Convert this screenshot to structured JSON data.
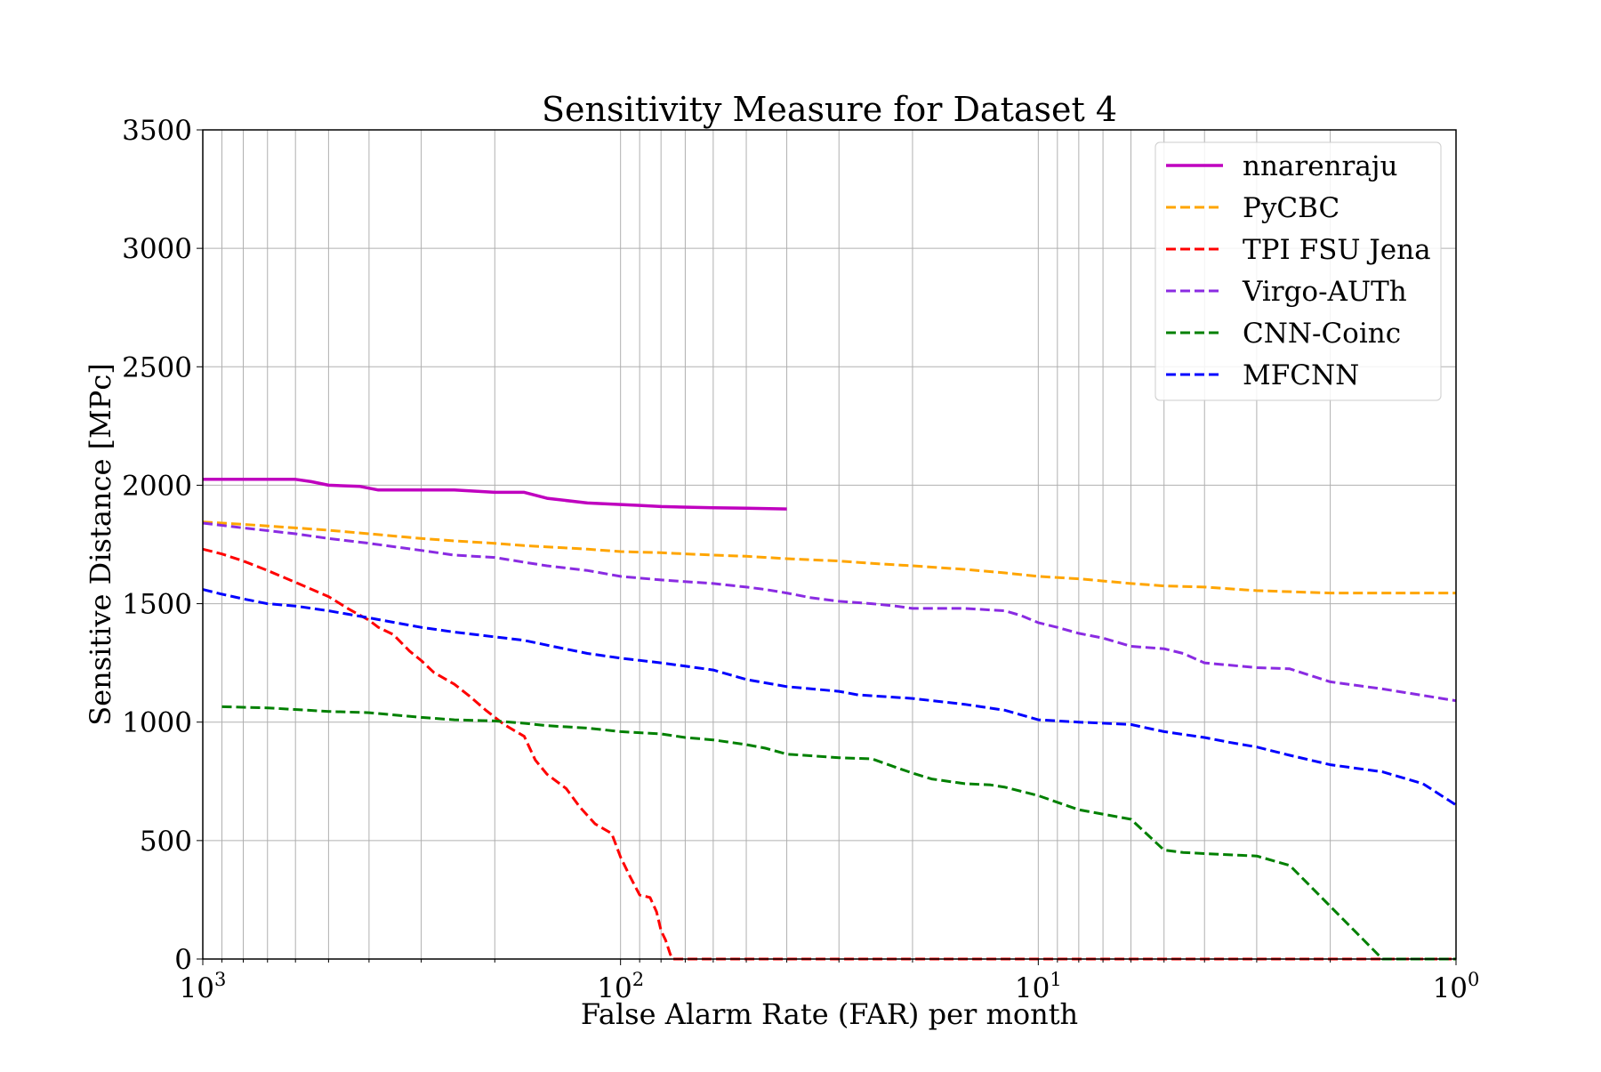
{
  "chart_data": {
    "type": "line",
    "title": "Sensitivity Measure for Dataset 4",
    "xlabel": "False Alarm Rate (FAR) per month",
    "ylabel": "Sensitive Distance [MPc]",
    "x_scale": "log",
    "x_reversed": true,
    "xlim": [
      1000,
      1
    ],
    "ylim": [
      0,
      3500
    ],
    "grid": true,
    "legend_position": "top-right",
    "x_ticks": [
      {
        "base": "10",
        "exp": "3",
        "value": 1000
      },
      {
        "base": "10",
        "exp": "2",
        "value": 100
      },
      {
        "base": "10",
        "exp": "1",
        "value": 10
      },
      {
        "base": "10",
        "exp": "0",
        "value": 1
      }
    ],
    "y_ticks": [
      {
        "label": "0",
        "value": 0
      },
      {
        "label": "500",
        "value": 500
      },
      {
        "label": "1000",
        "value": 1000
      },
      {
        "label": "1500",
        "value": 1500
      },
      {
        "label": "2000",
        "value": 2000
      },
      {
        "label": "2500",
        "value": 2500
      },
      {
        "label": "3000",
        "value": 3000
      },
      {
        "label": "3500",
        "value": 3500
      }
    ],
    "series": [
      {
        "name": "nnarenraju",
        "color": "#bf00bf",
        "dash": "solid",
        "points": [
          [
            1000,
            2025
          ],
          [
            800,
            2025
          ],
          [
            600,
            2025
          ],
          [
            550,
            2015
          ],
          [
            500,
            2000
          ],
          [
            420,
            1995
          ],
          [
            380,
            1980
          ],
          [
            300,
            1980
          ],
          [
            250,
            1980
          ],
          [
            200,
            1970
          ],
          [
            170,
            1970
          ],
          [
            150,
            1945
          ],
          [
            120,
            1925
          ],
          [
            90,
            1915
          ],
          [
            80,
            1910
          ],
          [
            60,
            1905
          ],
          [
            50,
            1903
          ],
          [
            40,
            1900
          ]
        ]
      },
      {
        "name": "PyCBC",
        "color": "#ffa500",
        "dash": "dashed",
        "points": [
          [
            1000,
            1845
          ],
          [
            800,
            1835
          ],
          [
            600,
            1820
          ],
          [
            500,
            1810
          ],
          [
            400,
            1795
          ],
          [
            300,
            1775
          ],
          [
            250,
            1765
          ],
          [
            200,
            1755
          ],
          [
            170,
            1745
          ],
          [
            150,
            1740
          ],
          [
            120,
            1730
          ],
          [
            100,
            1720
          ],
          [
            80,
            1715
          ],
          [
            60,
            1705
          ],
          [
            50,
            1700
          ],
          [
            40,
            1690
          ],
          [
            30,
            1680
          ],
          [
            25,
            1670
          ],
          [
            20,
            1660
          ],
          [
            15,
            1645
          ],
          [
            12,
            1630
          ],
          [
            10,
            1615
          ],
          [
            8,
            1605
          ],
          [
            6,
            1585
          ],
          [
            5,
            1575
          ],
          [
            4,
            1570
          ],
          [
            3,
            1555
          ],
          [
            2,
            1545
          ],
          [
            1.5,
            1545
          ],
          [
            1,
            1545
          ]
        ]
      },
      {
        "name": "TPI FSU Jena",
        "color": "#ff0000",
        "dash": "dashed",
        "points": [
          [
            1000,
            1730
          ],
          [
            900,
            1710
          ],
          [
            800,
            1680
          ],
          [
            700,
            1640
          ],
          [
            600,
            1590
          ],
          [
            500,
            1530
          ],
          [
            450,
            1480
          ],
          [
            400,
            1430
          ],
          [
            380,
            1400
          ],
          [
            350,
            1370
          ],
          [
            320,
            1300
          ],
          [
            300,
            1260
          ],
          [
            280,
            1210
          ],
          [
            250,
            1160
          ],
          [
            230,
            1110
          ],
          [
            210,
            1050
          ],
          [
            190,
            990
          ],
          [
            170,
            940
          ],
          [
            160,
            840
          ],
          [
            150,
            780
          ],
          [
            135,
            720
          ],
          [
            125,
            640
          ],
          [
            115,
            570
          ],
          [
            105,
            530
          ],
          [
            100,
            430
          ],
          [
            95,
            350
          ],
          [
            90,
            270
          ],
          [
            85,
            260
          ],
          [
            82,
            200
          ],
          [
            80,
            120
          ],
          [
            78,
            80
          ],
          [
            76,
            20
          ],
          [
            75,
            0
          ],
          [
            1,
            0
          ]
        ]
      },
      {
        "name": "Virgo-AUTh",
        "color": "#8a2be2",
        "dash": "dashed",
        "points": [
          [
            1000,
            1840
          ],
          [
            800,
            1820
          ],
          [
            600,
            1795
          ],
          [
            500,
            1775
          ],
          [
            400,
            1755
          ],
          [
            300,
            1725
          ],
          [
            250,
            1705
          ],
          [
            200,
            1695
          ],
          [
            170,
            1675
          ],
          [
            150,
            1660
          ],
          [
            120,
            1640
          ],
          [
            100,
            1615
          ],
          [
            80,
            1600
          ],
          [
            60,
            1585
          ],
          [
            50,
            1570
          ],
          [
            45,
            1560
          ],
          [
            40,
            1545
          ],
          [
            35,
            1525
          ],
          [
            30,
            1510
          ],
          [
            25,
            1500
          ],
          [
            22,
            1490
          ],
          [
            20,
            1480
          ],
          [
            15,
            1480
          ],
          [
            12,
            1470
          ],
          [
            11,
            1450
          ],
          [
            10,
            1420
          ],
          [
            9,
            1400
          ],
          [
            8,
            1375
          ],
          [
            7,
            1355
          ],
          [
            6,
            1320
          ],
          [
            5,
            1310
          ],
          [
            4.5,
            1290
          ],
          [
            4,
            1250
          ],
          [
            3,
            1230
          ],
          [
            2.5,
            1225
          ],
          [
            2,
            1170
          ],
          [
            1.5,
            1140
          ],
          [
            1,
            1090
          ]
        ]
      },
      {
        "name": "CNN-Coinc",
        "color": "#008000",
        "dash": "dashed",
        "points": [
          [
            900,
            1065
          ],
          [
            700,
            1060
          ],
          [
            500,
            1045
          ],
          [
            400,
            1040
          ],
          [
            300,
            1020
          ],
          [
            250,
            1010
          ],
          [
            200,
            1005
          ],
          [
            170,
            995
          ],
          [
            150,
            985
          ],
          [
            120,
            975
          ],
          [
            100,
            960
          ],
          [
            80,
            950
          ],
          [
            70,
            935
          ],
          [
            60,
            925
          ],
          [
            50,
            905
          ],
          [
            45,
            890
          ],
          [
            40,
            865
          ],
          [
            30,
            850
          ],
          [
            25,
            845
          ],
          [
            22,
            810
          ],
          [
            20,
            785
          ],
          [
            18,
            760
          ],
          [
            15,
            740
          ],
          [
            13,
            735
          ],
          [
            12,
            725
          ],
          [
            10,
            690
          ],
          [
            8,
            630
          ],
          [
            6,
            590
          ],
          [
            5,
            460
          ],
          [
            4.5,
            450
          ],
          [
            4,
            445
          ],
          [
            3,
            435
          ],
          [
            2.5,
            395
          ],
          [
            1.5,
            0
          ],
          [
            1,
            0
          ]
        ]
      },
      {
        "name": "MFCNN",
        "color": "#0000ff",
        "dash": "dashed",
        "points": [
          [
            1000,
            1560
          ],
          [
            900,
            1540
          ],
          [
            800,
            1520
          ],
          [
            700,
            1500
          ],
          [
            600,
            1490
          ],
          [
            500,
            1470
          ],
          [
            400,
            1440
          ],
          [
            300,
            1400
          ],
          [
            250,
            1380
          ],
          [
            200,
            1360
          ],
          [
            170,
            1345
          ],
          [
            150,
            1325
          ],
          [
            120,
            1290
          ],
          [
            100,
            1270
          ],
          [
            80,
            1250
          ],
          [
            60,
            1220
          ],
          [
            50,
            1180
          ],
          [
            40,
            1150
          ],
          [
            30,
            1130
          ],
          [
            27,
            1115
          ],
          [
            20,
            1100
          ],
          [
            15,
            1075
          ],
          [
            12,
            1050
          ],
          [
            10,
            1010
          ],
          [
            8,
            1000
          ],
          [
            6,
            990
          ],
          [
            5,
            960
          ],
          [
            4,
            935
          ],
          [
            3.5,
            915
          ],
          [
            3,
            895
          ],
          [
            2.5,
            860
          ],
          [
            2,
            820
          ],
          [
            1.5,
            790
          ],
          [
            1.2,
            740
          ],
          [
            1,
            650
          ]
        ]
      }
    ]
  }
}
